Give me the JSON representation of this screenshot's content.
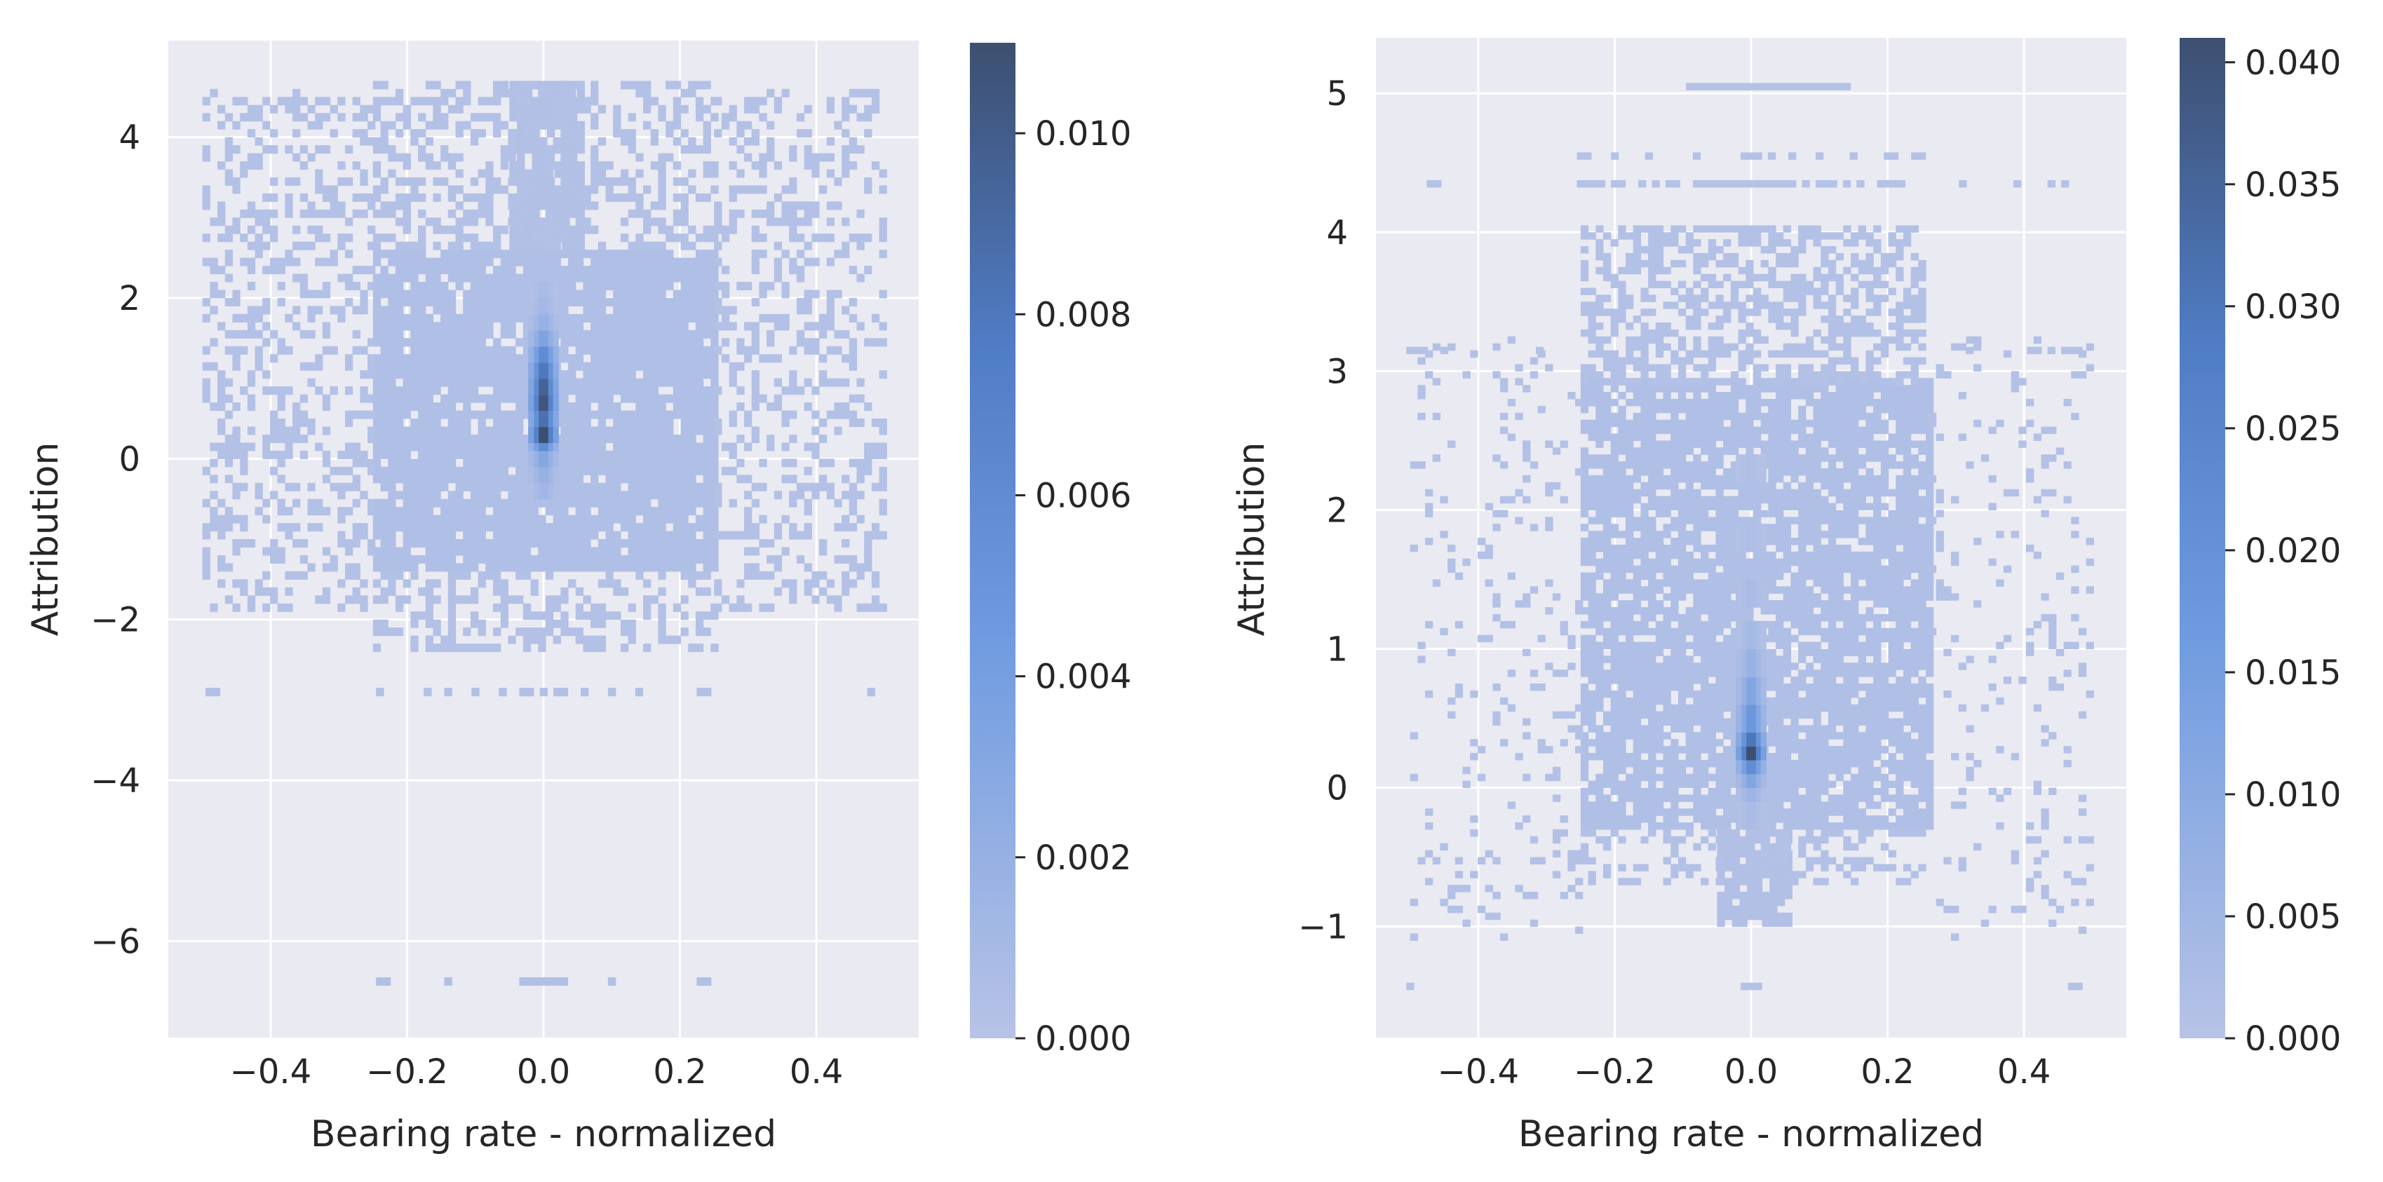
{
  "figure": {
    "background": "#ffffff",
    "plot_background": "#eaeaf2",
    "grid_color": "#ffffff",
    "colormap": [
      "#b7c3e6",
      "#6f9be0",
      "#4f7cc4",
      "#3d4f70"
    ]
  },
  "chart_data": [
    {
      "type": "heatmap",
      "title": "",
      "xlabel": "Bearing rate - normalized",
      "ylabel": "Attribution",
      "xlim": [
        -0.55,
        0.55
      ],
      "ylim": [
        -7.2,
        5.2
      ],
      "grid": true,
      "x_ticks": [
        -0.4,
        -0.2,
        0.0,
        0.2,
        0.4
      ],
      "x_tick_labels": [
        "−0.4",
        "−0.2",
        "0.0",
        "0.2",
        "0.4"
      ],
      "y_ticks": [
        -6,
        -4,
        -2,
        0,
        2,
        4
      ],
      "y_tick_labels": [
        "−6",
        "−4",
        "−2",
        "0",
        "2",
        "4"
      ],
      "colorbar": {
        "range": [
          0.0,
          0.011
        ],
        "ticks": [
          0.0,
          0.002,
          0.004,
          0.006,
          0.008,
          0.01
        ],
        "tick_labels": [
          "0.000",
          "0.002",
          "0.004",
          "0.006",
          "0.008",
          "0.010"
        ]
      },
      "density_regions": [
        {
          "x_range": [
            -0.25,
            0.25
          ],
          "y_range": [
            -1.4,
            2.6
          ],
          "density": 0.0004,
          "coverage": 0.92
        },
        {
          "x_range": [
            -0.05,
            0.05
          ],
          "y_range": [
            2.6,
            4.6
          ],
          "density": 0.0003,
          "coverage": 0.9
        },
        {
          "x_range": [
            -0.5,
            -0.25
          ],
          "y_range": [
            -1.9,
            4.6
          ],
          "density": 0.0002,
          "coverage": 0.35
        },
        {
          "x_range": [
            0.25,
            0.5
          ],
          "y_range": [
            -1.9,
            4.6
          ],
          "density": 0.0002,
          "coverage": 0.35
        },
        {
          "x_range": [
            -0.25,
            0.25
          ],
          "y_range": [
            2.6,
            4.6
          ],
          "density": 0.0002,
          "coverage": 0.45
        },
        {
          "x_range": [
            -0.25,
            0.25
          ],
          "y_range": [
            -2.4,
            -1.4
          ],
          "density": 0.0002,
          "coverage": 0.45
        }
      ],
      "peak_column": [
        {
          "x": 0.0,
          "y": -0.4,
          "density": 0.0014
        },
        {
          "x": 0.0,
          "y": -0.2,
          "density": 0.002
        },
        {
          "x": 0.0,
          "y": 0.0,
          "density": 0.003
        },
        {
          "x": 0.0,
          "y": 0.2,
          "density": 0.006
        },
        {
          "x": 0.0,
          "y": 0.3,
          "density": 0.011
        },
        {
          "x": 0.0,
          "y": 0.5,
          "density": 0.0085
        },
        {
          "x": 0.0,
          "y": 0.7,
          "density": 0.0105
        },
        {
          "x": 0.0,
          "y": 0.9,
          "density": 0.0095
        },
        {
          "x": 0.0,
          "y": 1.1,
          "density": 0.008
        },
        {
          "x": 0.0,
          "y": 1.3,
          "density": 0.006
        },
        {
          "x": 0.0,
          "y": 1.5,
          "density": 0.0035
        },
        {
          "x": 0.0,
          "y": 1.7,
          "density": 0.002
        },
        {
          "x": 0.0,
          "y": 1.9,
          "density": 0.0012
        },
        {
          "x": 0.0,
          "y": 2.1,
          "density": 0.0008
        }
      ],
      "sparse_rows": [
        {
          "y": -2.9,
          "x": [
            -0.49,
            -0.48,
            -0.24,
            -0.17,
            -0.14,
            -0.1,
            -0.06,
            -0.03,
            -0.02,
            0.0,
            0.02,
            0.03,
            0.06,
            0.1,
            0.14,
            0.23,
            0.24,
            0.48
          ]
        },
        {
          "y": -6.5,
          "x": [
            -0.24,
            -0.23,
            -0.14,
            -0.14,
            -0.03,
            -0.02,
            -0.01,
            0.0,
            0.01,
            0.02,
            0.03,
            0.1,
            0.23,
            0.24
          ]
        }
      ]
    },
    {
      "type": "heatmap",
      "title": "",
      "xlabel": "Bearing rate - normalized",
      "ylabel": "Attribution",
      "xlim": [
        -0.55,
        0.55
      ],
      "ylim": [
        -1.8,
        5.4
      ],
      "grid": true,
      "x_ticks": [
        -0.4,
        -0.2,
        0.0,
        0.2,
        0.4
      ],
      "x_tick_labels": [
        "−0.4",
        "−0.2",
        "0.0",
        "0.2",
        "0.4"
      ],
      "y_ticks": [
        -1,
        0,
        1,
        2,
        3,
        4,
        5
      ],
      "y_tick_labels": [
        "−1",
        "0",
        "1",
        "2",
        "3",
        "4",
        "5"
      ],
      "colorbar": {
        "range": [
          0.0,
          0.041
        ],
        "ticks": [
          0.0,
          0.005,
          0.01,
          0.015,
          0.02,
          0.025,
          0.03,
          0.035,
          0.04
        ],
        "tick_labels": [
          "0.000",
          "0.005",
          "0.010",
          "0.015",
          "0.020",
          "0.025",
          "0.030",
          "0.035",
          "0.040"
        ]
      },
      "density_regions": [
        {
          "x_range": [
            -0.25,
            0.26
          ],
          "y_range": [
            -0.3,
            2.9
          ],
          "density": 0.0015,
          "coverage": 0.85
        },
        {
          "x_range": [
            -0.25,
            0.25
          ],
          "y_range": [
            2.9,
            4.0
          ],
          "density": 0.001,
          "coverage": 0.55
        },
        {
          "x_range": [
            -0.05,
            0.05
          ],
          "y_range": [
            -1.0,
            -0.3
          ],
          "density": 0.0012,
          "coverage": 0.85
        },
        {
          "x_range": [
            -0.5,
            -0.25
          ],
          "y_range": [
            -1.1,
            3.2
          ],
          "density": 0.0008,
          "coverage": 0.1
        },
        {
          "x_range": [
            0.26,
            0.5
          ],
          "y_range": [
            -1.1,
            3.2
          ],
          "density": 0.0008,
          "coverage": 0.1
        },
        {
          "x_range": [
            -0.25,
            0.25
          ],
          "y_range": [
            -0.7,
            -0.3
          ],
          "density": 0.0008,
          "coverage": 0.35
        }
      ],
      "peak_column": [
        {
          "x": 0.0,
          "y": -0.2,
          "density": 0.003
        },
        {
          "x": 0.0,
          "y": 0.0,
          "density": 0.006
        },
        {
          "x": 0.0,
          "y": 0.1,
          "density": 0.012
        },
        {
          "x": 0.0,
          "y": 0.2,
          "density": 0.022
        },
        {
          "x": 0.0,
          "y": 0.3,
          "density": 0.041
        },
        {
          "x": 0.0,
          "y": 0.4,
          "density": 0.03
        },
        {
          "x": 0.0,
          "y": 0.5,
          "density": 0.018
        },
        {
          "x": 0.0,
          "y": 0.7,
          "density": 0.012
        },
        {
          "x": 0.0,
          "y": 0.9,
          "density": 0.007
        },
        {
          "x": 0.0,
          "y": 1.1,
          "density": 0.004
        },
        {
          "x": 0.0,
          "y": 1.4,
          "density": 0.003
        },
        {
          "x": 0.0,
          "y": 1.8,
          "density": 0.002
        },
        {
          "x": 0.0,
          "y": 2.3,
          "density": 0.0015
        }
      ],
      "sparse_rows": [
        {
          "y": 5.05,
          "x": [
            -0.09,
            -0.08,
            -0.07,
            -0.06,
            -0.05,
            -0.04,
            -0.03,
            -0.02,
            -0.01,
            0.0,
            0.01,
            0.02,
            0.03,
            0.04,
            0.05,
            0.06,
            0.07,
            0.08,
            0.09,
            0.1,
            0.11,
            0.12,
            0.13,
            0.14
          ]
        },
        {
          "y": 4.55,
          "x": [
            -0.25,
            -0.24,
            -0.2,
            -0.15,
            -0.08,
            -0.01,
            0.0,
            0.01,
            0.03,
            0.06,
            0.1,
            0.15,
            0.2,
            0.21,
            0.24,
            0.25
          ]
        },
        {
          "y": 4.35,
          "x": [
            -0.47,
            -0.46,
            -0.25,
            -0.24,
            -0.23,
            -0.22,
            -0.2,
            -0.19,
            -0.16,
            -0.14,
            -0.12,
            -0.11,
            -0.08,
            -0.07,
            -0.06,
            -0.05,
            -0.04,
            -0.03,
            -0.02,
            -0.01,
            0.0,
            0.01,
            0.02,
            0.03,
            0.04,
            0.05,
            0.06,
            0.08,
            0.1,
            0.11,
            0.12,
            0.14,
            0.16,
            0.19,
            0.2,
            0.21,
            0.22,
            0.31,
            0.39,
            0.44,
            0.46
          ]
        },
        {
          "y": 3.15,
          "x": [
            -0.5,
            -0.49,
            -0.48,
            -0.45,
            -0.31,
            0.32,
            0.41,
            0.42,
            0.44,
            0.46,
            0.47,
            0.48
          ]
        },
        {
          "y": -1.43,
          "x": [
            -0.5,
            -0.01,
            0.0,
            0.01,
            0.47,
            0.48
          ]
        }
      ]
    }
  ]
}
